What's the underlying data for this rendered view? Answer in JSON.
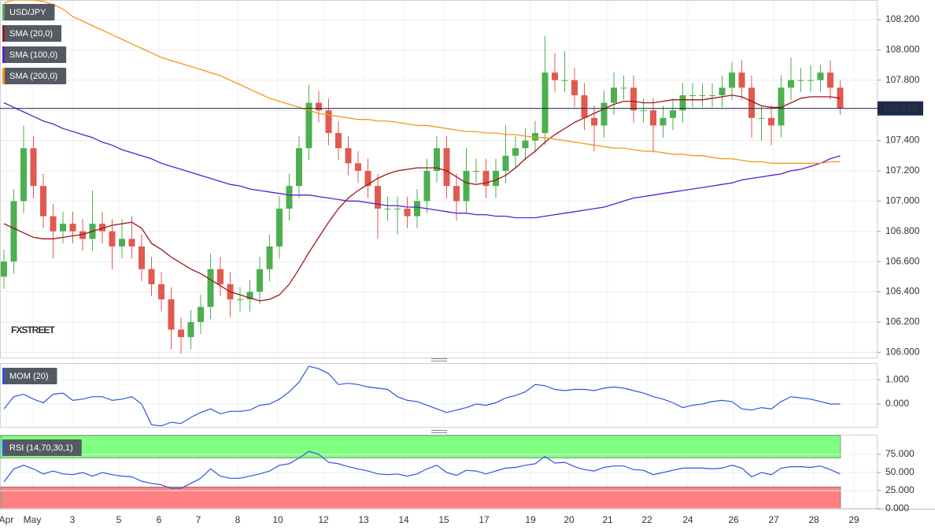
{
  "chart_data": [
    {
      "type": "candlestick",
      "name": "USD/JPY",
      "watermark": "FXSTREET",
      "up_color": "#4caf50",
      "down_color": "#e05a50",
      "legend_color": "#4caf50",
      "open": [
        106.5,
        106.6,
        107.0,
        107.35,
        107.1,
        106.9,
        106.8,
        106.85,
        106.8,
        106.75,
        106.85,
        106.8,
        106.7,
        106.75,
        106.7,
        106.55,
        106.45,
        106.35,
        106.15,
        106.1,
        106.2,
        106.3,
        106.55,
        106.45,
        106.35,
        106.35,
        106.4,
        106.55,
        106.7,
        106.95,
        107.1,
        107.35,
        107.65,
        107.6,
        107.45,
        107.35,
        107.25,
        107.2,
        107.1,
        106.95,
        106.95,
        106.95,
        106.9,
        107.0,
        107.2,
        107.35,
        107.1,
        107.0,
        107.2,
        107.2,
        107.1,
        107.2,
        107.3,
        107.35,
        107.4,
        107.45,
        107.85,
        107.8,
        107.8,
        107.7,
        107.55,
        107.5,
        107.65,
        107.75,
        107.75,
        107.6,
        107.6,
        107.5,
        107.55,
        107.6,
        107.7,
        107.7,
        107.7,
        107.7,
        107.75,
        107.85,
        107.75,
        107.55,
        107.55,
        107.5,
        107.75,
        107.8,
        107.8,
        107.8,
        107.85,
        107.75
      ],
      "high": [
        106.68,
        107.08,
        107.5,
        107.43,
        107.18,
        106.98,
        106.93,
        106.93,
        106.88,
        107.07,
        106.93,
        106.88,
        106.88,
        106.9,
        106.78,
        106.63,
        106.53,
        106.43,
        106.23,
        106.28,
        106.38,
        106.65,
        106.63,
        106.53,
        106.43,
        106.48,
        106.63,
        106.78,
        107.03,
        107.18,
        107.43,
        107.77,
        107.73,
        107.68,
        107.53,
        107.43,
        107.33,
        107.28,
        107.18,
        107.03,
        107.03,
        107.03,
        107.08,
        107.28,
        107.43,
        107.43,
        107.18,
        107.35,
        107.28,
        107.28,
        107.28,
        107.5,
        107.43,
        107.48,
        107.53,
        108.09,
        107.98,
        107.99,
        107.88,
        107.78,
        107.63,
        107.73,
        107.85,
        107.83,
        107.83,
        107.68,
        107.68,
        107.63,
        107.68,
        107.78,
        107.78,
        107.78,
        107.78,
        107.83,
        107.92,
        107.93,
        107.83,
        107.63,
        107.63,
        107.83,
        107.95,
        107.88,
        107.9,
        107.9,
        107.93,
        107.8
      ],
      "low": [
        106.42,
        106.52,
        106.92,
        107.02,
        106.82,
        106.62,
        106.72,
        106.72,
        106.67,
        106.67,
        106.72,
        106.55,
        106.62,
        106.62,
        106.47,
        106.37,
        106.27,
        106.02,
        105.99,
        106.02,
        106.12,
        106.22,
        106.37,
        106.23,
        106.27,
        106.27,
        106.32,
        106.47,
        106.62,
        106.87,
        107.02,
        107.27,
        107.52,
        107.37,
        107.27,
        107.17,
        107.12,
        107.02,
        106.75,
        106.87,
        106.78,
        106.82,
        106.82,
        106.92,
        107.12,
        107.02,
        106.87,
        106.92,
        107.12,
        107.02,
        107.02,
        107.12,
        107.22,
        107.27,
        107.32,
        107.37,
        107.72,
        107.72,
        107.62,
        107.47,
        107.33,
        107.42,
        107.57,
        107.67,
        107.52,
        107.52,
        107.32,
        107.42,
        107.47,
        107.52,
        107.62,
        107.62,
        107.62,
        107.62,
        107.67,
        107.67,
        107.42,
        107.4,
        107.37,
        107.42,
        107.67,
        107.72,
        107.72,
        107.72,
        107.67,
        107.57
      ],
      "close": [
        106.6,
        107.0,
        107.35,
        107.1,
        106.9,
        106.8,
        106.85,
        106.8,
        106.75,
        106.85,
        106.8,
        106.7,
        106.75,
        106.7,
        106.55,
        106.45,
        106.35,
        106.15,
        106.1,
        106.2,
        106.3,
        106.55,
        106.45,
        106.35,
        106.35,
        106.4,
        106.55,
        106.7,
        106.95,
        107.1,
        107.35,
        107.65,
        107.6,
        107.45,
        107.35,
        107.25,
        107.2,
        107.1,
        106.95,
        106.95,
        106.95,
        106.9,
        107.0,
        107.2,
        107.35,
        107.1,
        107.0,
        107.2,
        107.2,
        107.1,
        107.2,
        107.3,
        107.35,
        107.4,
        107.45,
        107.85,
        107.8,
        107.8,
        107.7,
        107.55,
        107.5,
        107.65,
        107.75,
        107.75,
        107.6,
        107.6,
        107.5,
        107.55,
        107.6,
        107.7,
        107.7,
        107.7,
        107.7,
        107.75,
        107.85,
        107.75,
        107.55,
        107.55,
        107.5,
        107.75,
        107.8,
        107.8,
        107.8,
        107.85,
        107.75,
        107.613
      ],
      "overlays": [
        {
          "name": "SMA (20,0)",
          "color": "#a0151b",
          "values": [
            106.85,
            106.82,
            106.79,
            106.76,
            106.75,
            106.75,
            106.76,
            106.77,
            106.78,
            106.8,
            106.82,
            106.84,
            106.85,
            106.86,
            106.82,
            106.72,
            106.68,
            106.63,
            106.59,
            106.55,
            106.52,
            106.48,
            106.44,
            106.4,
            106.38,
            106.36,
            106.34,
            106.35,
            106.38,
            106.45,
            106.55,
            106.66,
            106.76,
            106.86,
            106.95,
            107.02,
            107.07,
            107.11,
            107.15,
            107.18,
            107.2,
            107.21,
            107.22,
            107.22,
            107.22,
            107.2,
            107.16,
            107.12,
            107.11,
            107.12,
            107.14,
            107.17,
            107.22,
            107.28,
            107.33,
            107.39,
            107.44,
            107.48,
            107.52,
            107.55,
            107.58,
            107.61,
            107.64,
            107.66,
            107.66,
            107.65,
            107.65,
            107.66,
            107.67,
            107.67,
            107.67,
            107.67,
            107.68,
            107.69,
            107.7,
            107.69,
            107.66,
            107.63,
            107.62,
            107.62,
            107.65,
            107.68,
            107.69,
            107.69,
            107.69,
            107.68
          ]
        },
        {
          "name": "SMA (100,0)",
          "color": "#5a1fd0",
          "values": [
            107.65,
            107.62,
            107.59,
            107.56,
            107.53,
            107.51,
            107.48,
            107.46,
            107.44,
            107.42,
            107.39,
            107.37,
            107.34,
            107.32,
            107.3,
            107.28,
            107.25,
            107.23,
            107.21,
            107.19,
            107.17,
            107.15,
            107.13,
            107.11,
            107.1,
            107.08,
            107.07,
            107.06,
            107.05,
            107.04,
            107.04,
            107.04,
            107.03,
            107.02,
            107.01,
            107.0,
            107.0,
            106.99,
            106.98,
            106.97,
            106.97,
            106.96,
            106.96,
            106.95,
            106.94,
            106.93,
            106.92,
            106.92,
            106.91,
            106.91,
            106.9,
            106.9,
            106.89,
            106.89,
            106.89,
            106.9,
            106.91,
            106.92,
            106.93,
            106.94,
            106.95,
            106.96,
            106.98,
            107.0,
            107.02,
            107.03,
            107.04,
            107.05,
            107.06,
            107.07,
            107.08,
            107.09,
            107.1,
            107.11,
            107.12,
            107.14,
            107.15,
            107.16,
            107.17,
            107.18,
            107.2,
            107.21,
            107.23,
            107.25,
            107.28,
            107.3
          ]
        },
        {
          "name": "SMA (200,0)",
          "color": "#f5961e",
          "values": [
            108.31,
            108.33,
            108.33,
            108.33,
            108.32,
            108.3,
            108.27,
            108.22,
            108.19,
            108.16,
            108.13,
            108.1,
            108.07,
            108.04,
            108.01,
            107.98,
            107.95,
            107.93,
            107.91,
            107.89,
            107.87,
            107.85,
            107.83,
            107.8,
            107.77,
            107.74,
            107.71,
            107.68,
            107.66,
            107.64,
            107.62,
            107.6,
            107.58,
            107.57,
            107.56,
            107.55,
            107.54,
            107.54,
            107.53,
            107.53,
            107.52,
            107.51,
            107.5,
            107.5,
            107.49,
            107.48,
            107.47,
            107.46,
            107.46,
            107.45,
            107.45,
            107.44,
            107.44,
            107.43,
            107.42,
            107.42,
            107.41,
            107.4,
            107.39,
            107.38,
            107.37,
            107.36,
            107.35,
            107.35,
            107.34,
            107.33,
            107.33,
            107.32,
            107.31,
            107.31,
            107.3,
            107.3,
            107.29,
            107.28,
            107.28,
            107.27,
            107.26,
            107.26,
            107.25,
            107.25,
            107.25,
            107.25,
            107.25,
            107.25,
            107.26,
            107.26
          ]
        }
      ],
      "ylim": [
        105.96,
        108.33
      ],
      "yticks": [
        {
          "value": 106.0,
          "label": "106.000"
        },
        {
          "value": 106.2,
          "label": "106.200"
        },
        {
          "value": 106.4,
          "label": "106.400"
        },
        {
          "value": 106.6,
          "label": "106.600"
        },
        {
          "value": 106.8,
          "label": "106.800"
        },
        {
          "value": 107.0,
          "label": "107.000"
        },
        {
          "value": 107.2,
          "label": "107.200"
        },
        {
          "value": 107.4,
          "label": "107.400"
        },
        {
          "value": 107.6,
          "label": "107.600"
        },
        {
          "value": 107.8,
          "label": "107.800"
        },
        {
          "value": 108.0,
          "label": "108.000"
        },
        {
          "value": 108.2,
          "label": "108.200"
        }
      ],
      "xlim": [
        -0.4,
        88.8
      ],
      "xticks": [
        {
          "value": 0.24,
          "label": "Apr"
        },
        {
          "value": 2.88,
          "label": "May"
        },
        {
          "value": 6.96,
          "label": "3"
        },
        {
          "value": 11.68,
          "label": "5"
        },
        {
          "value": 15.76,
          "label": "6"
        },
        {
          "value": 19.76,
          "label": "7"
        },
        {
          "value": 23.76,
          "label": "8"
        },
        {
          "value": 27.84,
          "label": "10"
        },
        {
          "value": 32.48,
          "label": "12"
        },
        {
          "value": 36.56,
          "label": "13"
        },
        {
          "value": 40.64,
          "label": "14"
        },
        {
          "value": 44.72,
          "label": "15"
        },
        {
          "value": 48.8,
          "label": "17"
        },
        {
          "value": 53.52,
          "label": "19"
        },
        {
          "value": 57.44,
          "label": "20"
        },
        {
          "value": 61.36,
          "label": "21"
        },
        {
          "value": 65.36,
          "label": "22"
        },
        {
          "value": 69.52,
          "label": "24"
        },
        {
          "value": 74.16,
          "label": "26"
        },
        {
          "value": 78.24,
          "label": "27"
        },
        {
          "value": 82.32,
          "label": "28"
        },
        {
          "value": 86.4,
          "label": "29"
        }
      ],
      "grid": true
    },
    {
      "type": "line",
      "series": [
        {
          "name": "MOM (20)",
          "color": "#2f55e0",
          "values": [
            -0.2,
            0.3,
            0.4,
            0.2,
            0.05,
            0.4,
            0.45,
            0.15,
            0.2,
            0.3,
            0.3,
            0.15,
            0.2,
            0.3,
            0.0,
            -0.85,
            -0.9,
            -0.75,
            -0.8,
            -0.55,
            -0.35,
            -0.2,
            -0.4,
            -0.3,
            -0.3,
            -0.25,
            -0.05,
            0.0,
            0.2,
            0.5,
            0.9,
            1.55,
            1.45,
            1.25,
            0.8,
            0.85,
            0.8,
            0.7,
            0.65,
            0.6,
            0.3,
            0.15,
            0.1,
            -0.05,
            -0.2,
            -0.35,
            -0.25,
            -0.15,
            0.0,
            -0.05,
            0.05,
            0.25,
            0.35,
            0.5,
            0.8,
            0.75,
            0.6,
            0.55,
            0.6,
            0.6,
            0.55,
            0.65,
            0.7,
            0.65,
            0.55,
            0.45,
            0.3,
            0.2,
            0.05,
            -0.15,
            -0.05,
            0.0,
            0.1,
            0.15,
            0.1,
            -0.2,
            -0.25,
            -0.15,
            -0.2,
            0.1,
            0.3,
            0.25,
            0.2,
            0.1,
            0.0,
            0.0
          ]
        }
      ],
      "ylim": [
        -0.97,
        1.65
      ],
      "yticks": [
        {
          "value": 0,
          "label": "0.000"
        },
        {
          "value": 1,
          "label": "1.000"
        }
      ],
      "grid": true
    },
    {
      "type": "line",
      "series": [
        {
          "name": "RSI (14,70,30,1)",
          "color": "#2f55e0",
          "values": [
            37,
            55,
            60,
            55,
            48,
            52,
            48,
            47,
            50,
            45,
            50,
            47,
            45,
            44,
            38,
            35,
            33,
            28,
            28,
            35,
            42,
            55,
            45,
            42,
            42,
            45,
            48,
            52,
            60,
            62,
            70,
            79,
            75,
            64,
            62,
            58,
            55,
            52,
            48,
            47,
            48,
            45,
            48,
            55,
            60,
            50,
            46,
            53,
            52,
            48,
            52,
            56,
            57,
            60,
            62,
            72,
            63,
            64,
            58,
            54,
            52,
            57,
            59,
            59,
            54,
            53,
            47,
            50,
            53,
            56,
            56,
            56,
            55,
            56,
            60,
            56,
            44,
            50,
            47,
            56,
            58,
            58,
            57,
            59,
            54,
            48
          ]
        }
      ],
      "bands": [
        {
          "from": 70,
          "to": 101,
          "color": "#80ff80"
        },
        {
          "from": 0,
          "to": 30,
          "color": "#ff8080"
        }
      ],
      "ylim": [
        0,
        101
      ],
      "yticks": [
        {
          "value": 0,
          "label": "0.000"
        },
        {
          "value": 25,
          "label": "25.000"
        },
        {
          "value": 50,
          "label": "50.000"
        },
        {
          "value": 75,
          "label": "75.000"
        }
      ],
      "grid": true
    }
  ]
}
